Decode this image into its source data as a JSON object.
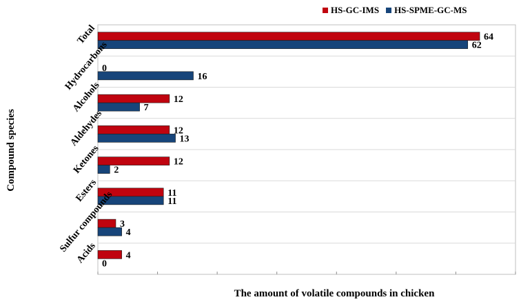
{
  "chart_data": {
    "type": "bar",
    "orientation": "horizontal",
    "title": "",
    "xlabel": "The amount of volatile compounds in chicken",
    "ylabel": "Compound species",
    "categories": [
      "Total",
      "Hydrocarbons",
      "Alcohols",
      "Aldehydes",
      "Ketones",
      "Esters",
      "Sulfur compounds",
      "Acids"
    ],
    "series": [
      {
        "name": "HS-GC-IMS",
        "color": "#c0040f",
        "values": [
          64,
          0,
          12,
          12,
          12,
          11,
          3,
          4
        ]
      },
      {
        "name": "HS-SPME-GC-MS",
        "color": "#17457a",
        "values": [
          62,
          16,
          7,
          13,
          2,
          11,
          4,
          0
        ]
      }
    ],
    "xlim": [
      0,
      70
    ],
    "grid": true,
    "legend_position": "top-right"
  }
}
